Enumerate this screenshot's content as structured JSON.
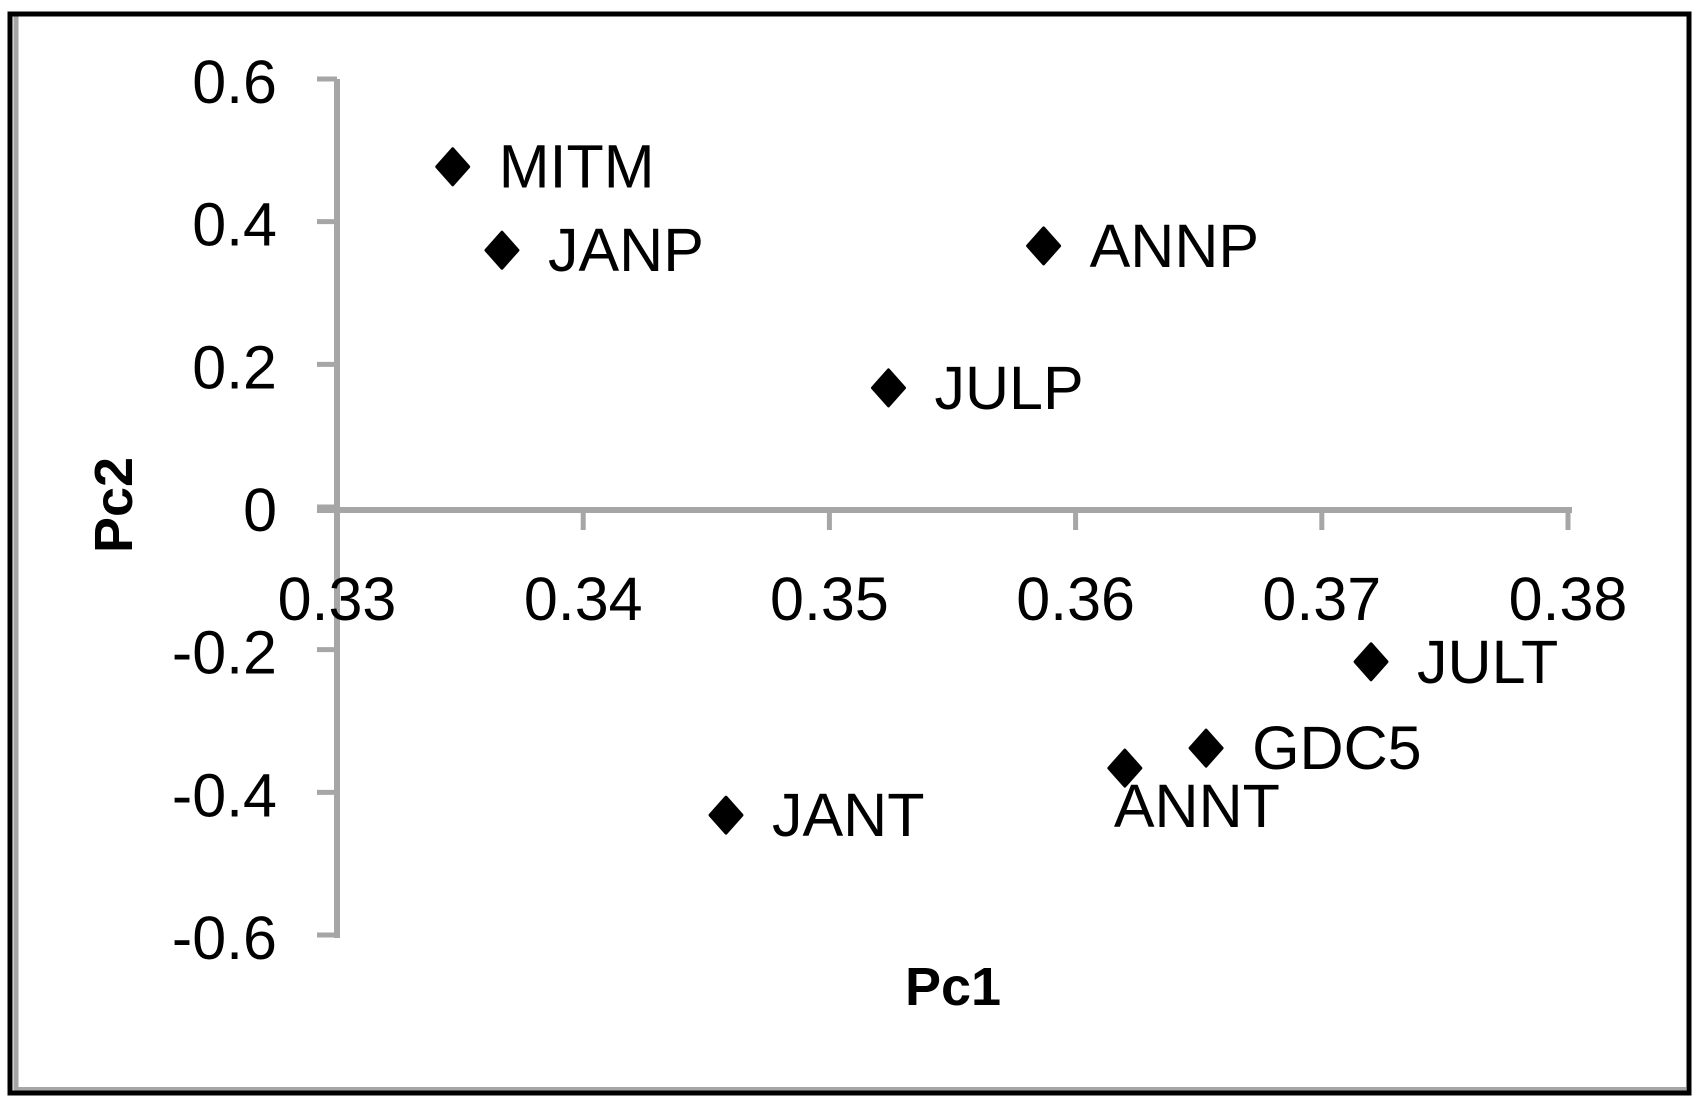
{
  "figure": {
    "background": "#ffffff",
    "border_color": "#000000",
    "inner_edge_color": "#a6a6a6"
  },
  "chart_data": {
    "type": "scatter",
    "title": "",
    "xlabel": "Pc1",
    "ylabel": "Pc2",
    "xlim": [
      0.33,
      0.38
    ],
    "ylim": [
      -0.6,
      0.6
    ],
    "x_ticks": [
      0.33,
      0.34,
      0.35,
      0.36,
      0.37,
      0.38
    ],
    "x_tick_labels": [
      "0.33",
      "0.34",
      "0.35",
      "0.36",
      "0.37",
      "0.38"
    ],
    "y_ticks": [
      0.6,
      0.4,
      0.2,
      0,
      -0.2,
      -0.4,
      -0.6
    ],
    "y_tick_labels": [
      "0.6",
      "0.4",
      "0.2",
      "0",
      "-0.2",
      "-0.4",
      "-0.6"
    ],
    "grid": false,
    "legend": false,
    "axis_color": "#a6a6a6",
    "marker": "diamond",
    "marker_color": "#000000",
    "points": [
      {
        "label": "MITM",
        "x": 0.3347,
        "y": 0.477,
        "label_position": "right"
      },
      {
        "label": "JANP",
        "x": 0.3367,
        "y": 0.36,
        "label_position": "right"
      },
      {
        "label": "ANNP",
        "x": 0.3587,
        "y": 0.366,
        "label_position": "right"
      },
      {
        "label": "JULP",
        "x": 0.3524,
        "y": 0.167,
        "label_position": "right"
      },
      {
        "label": "JULT",
        "x": 0.372,
        "y": -0.217,
        "label_position": "right"
      },
      {
        "label": "GDC5",
        "x": 0.3653,
        "y": -0.338,
        "label_position": "right"
      },
      {
        "label": "ANNT",
        "x": 0.362,
        "y": -0.366,
        "label_position": "below"
      },
      {
        "label": "JANT",
        "x": 0.3458,
        "y": -0.432,
        "label_position": "right"
      }
    ]
  }
}
